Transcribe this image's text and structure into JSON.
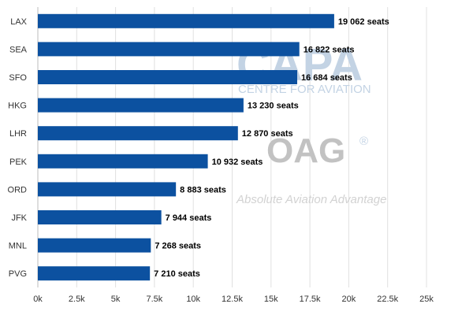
{
  "chart_data": {
    "type": "bar",
    "orientation": "horizontal",
    "categories": [
      "LAX",
      "SEA",
      "SFO",
      "HKG",
      "LHR",
      "PEK",
      "ORD",
      "JFK",
      "MNL",
      "PVG"
    ],
    "values": [
      19062,
      16822,
      16684,
      13230,
      12870,
      10932,
      8883,
      7944,
      7268,
      7210
    ],
    "data_labels": [
      "19 062 seats",
      "16 822 seats",
      "16 684 seats",
      "13 230 seats",
      "12 870 seats",
      "10 932 seats",
      "8 883 seats",
      "7 944 seats",
      "7 268 seats",
      "7 210 seats"
    ],
    "x_ticks": [
      0,
      2500,
      5000,
      7500,
      10000,
      12500,
      15000,
      17500,
      20000,
      22500,
      25000
    ],
    "x_tick_labels": [
      "0k",
      "2.5k",
      "5k",
      "7.5k",
      "10k",
      "12.5k",
      "15k",
      "17.5k",
      "20k",
      "22.5k",
      "25k"
    ],
    "xlim": [
      0,
      25000
    ],
    "grid": true,
    "legend": "none",
    "colors": {
      "bar": "#0c51a0",
      "grid": "#e0e0e0",
      "axis": "#bbbbbb"
    }
  },
  "watermarks": {
    "capa": "CAPA",
    "capa_sub": "CENTRE FOR AVIATION",
    "oag": "OAG",
    "oag_reg": "®",
    "oag_tagline": "Absolute Aviation Advantage"
  }
}
